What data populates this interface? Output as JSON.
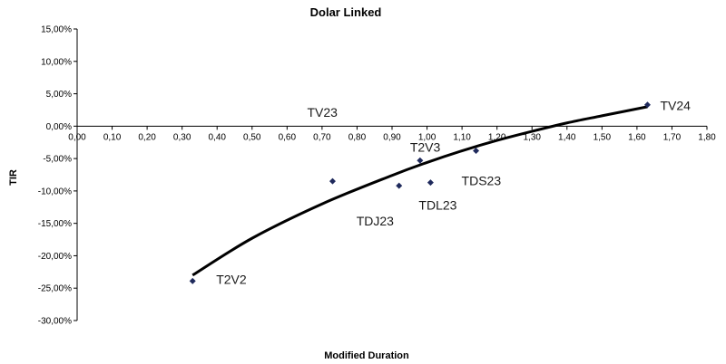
{
  "chart_data": {
    "type": "scatter",
    "title": "Dolar Linked",
    "xlabel": "Modified Duration",
    "ylabel": "TIR",
    "xlim": [
      0,
      1.8
    ],
    "ylim": [
      -30,
      15
    ],
    "x_ticks": [
      "0,00",
      "0,10",
      "0,20",
      "0,30",
      "0,40",
      "0,50",
      "0,60",
      "0,70",
      "0,80",
      "0,90",
      "1,00",
      "1,10",
      "1,20",
      "1,30",
      "1,40",
      "1,50",
      "1,60",
      "1,70",
      "1,80"
    ],
    "y_ticks": [
      "15,00%",
      "10,00%",
      "5,00%",
      "0,00%",
      "-5,00%",
      "-10,00%",
      "-15,00%",
      "-20,00%",
      "-25,00%",
      "-30,00%"
    ],
    "grid": false,
    "legend": "none",
    "marker_color": "#1f2a5c",
    "trendline_color": "#000000",
    "points": [
      {
        "label": "T2V2",
        "x": 0.33,
        "y": -23.9
      },
      {
        "label": "TV23",
        "x": 0.73,
        "y": -8.5
      },
      {
        "label": "TDJ23",
        "x": 0.92,
        "y": -9.2
      },
      {
        "label": "T2V3",
        "x": 0.98,
        "y": -5.3
      },
      {
        "label": "TDL23",
        "x": 1.01,
        "y": -8.7
      },
      {
        "label": "TDS23",
        "x": 1.14,
        "y": -3.8
      },
      {
        "label": "TV24",
        "x": 1.63,
        "y": 3.3
      }
    ],
    "trendline": [
      {
        "x": 0.33,
        "y": -23.0
      },
      {
        "x": 0.5,
        "y": -17.3
      },
      {
        "x": 0.7,
        "y": -12.0
      },
      {
        "x": 0.9,
        "y": -7.6
      },
      {
        "x": 1.0,
        "y": -5.6
      },
      {
        "x": 1.1,
        "y": -3.8
      },
      {
        "x": 1.2,
        "y": -2.2
      },
      {
        "x": 1.3,
        "y": -0.8
      },
      {
        "x": 1.4,
        "y": 0.5
      },
      {
        "x": 1.5,
        "y": 1.6
      },
      {
        "x": 1.63,
        "y": 3.0
      }
    ]
  }
}
